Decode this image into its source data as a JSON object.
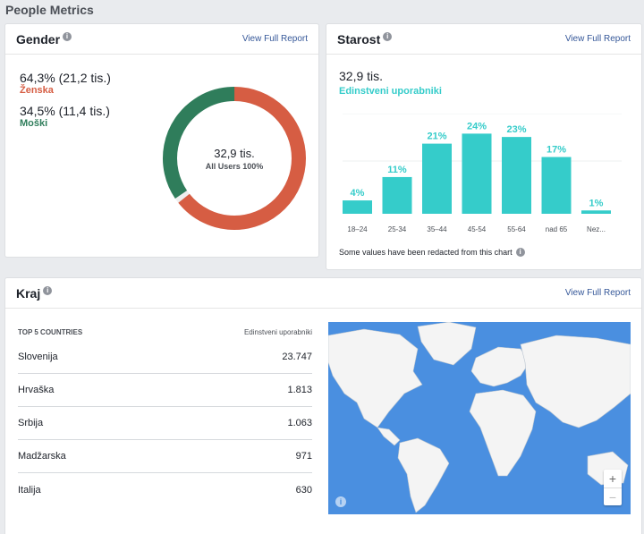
{
  "page": {
    "title": "People Metrics"
  },
  "colors": {
    "female": "#d65d43",
    "male": "#2f7d5b",
    "age_bar": "#35ccca",
    "link": "#365899",
    "map_ocean": "#4a8fe0",
    "map_land": "#f4f4f4"
  },
  "gender": {
    "title": "Gender",
    "view_full": "View Full Report",
    "female": {
      "pct": "64,3% (21,2 tis.)",
      "label": "Ženska",
      "share": 0.643
    },
    "male": {
      "pct": "34,5% (11,4 tis.)",
      "label": "Moški",
      "share": 0.345
    },
    "donut_total": "32,9 tis.",
    "donut_sub": "All Users 100%"
  },
  "age": {
    "title": "Starost",
    "view_full": "View Full Report",
    "total": "32,9 tis.",
    "subtitle": "Edinstveni uporabniki",
    "note": "Some values have been redacted from this chart"
  },
  "chart_data": {
    "type": "bar",
    "categories": [
      "18–24",
      "25-34",
      "35–44",
      "45-54",
      "55-64",
      "nad 65",
      "Nez..."
    ],
    "values": [
      4,
      11,
      21,
      24,
      23,
      17,
      1
    ],
    "labels": [
      "4%",
      "11%",
      "21%",
      "24%",
      "23%",
      "17%",
      "1%"
    ],
    "title": "",
    "xlabel": "",
    "ylabel": "",
    "ylim": [
      0,
      30
    ]
  },
  "region": {
    "title": "Kraj",
    "view_full": "View Full Report",
    "col_country": "TOP 5 COUNTRIES",
    "col_users": "Edinstveni uporabniki",
    "rows": [
      {
        "country": "Slovenija",
        "users": "23.747"
      },
      {
        "country": "Hrvaška",
        "users": "1.813"
      },
      {
        "country": "Srbija",
        "users": "1.063"
      },
      {
        "country": "Madžarska",
        "users": "971"
      },
      {
        "country": "Italija",
        "users": "630"
      }
    ],
    "zoom_in": "+",
    "zoom_out": "−",
    "info": "i"
  }
}
